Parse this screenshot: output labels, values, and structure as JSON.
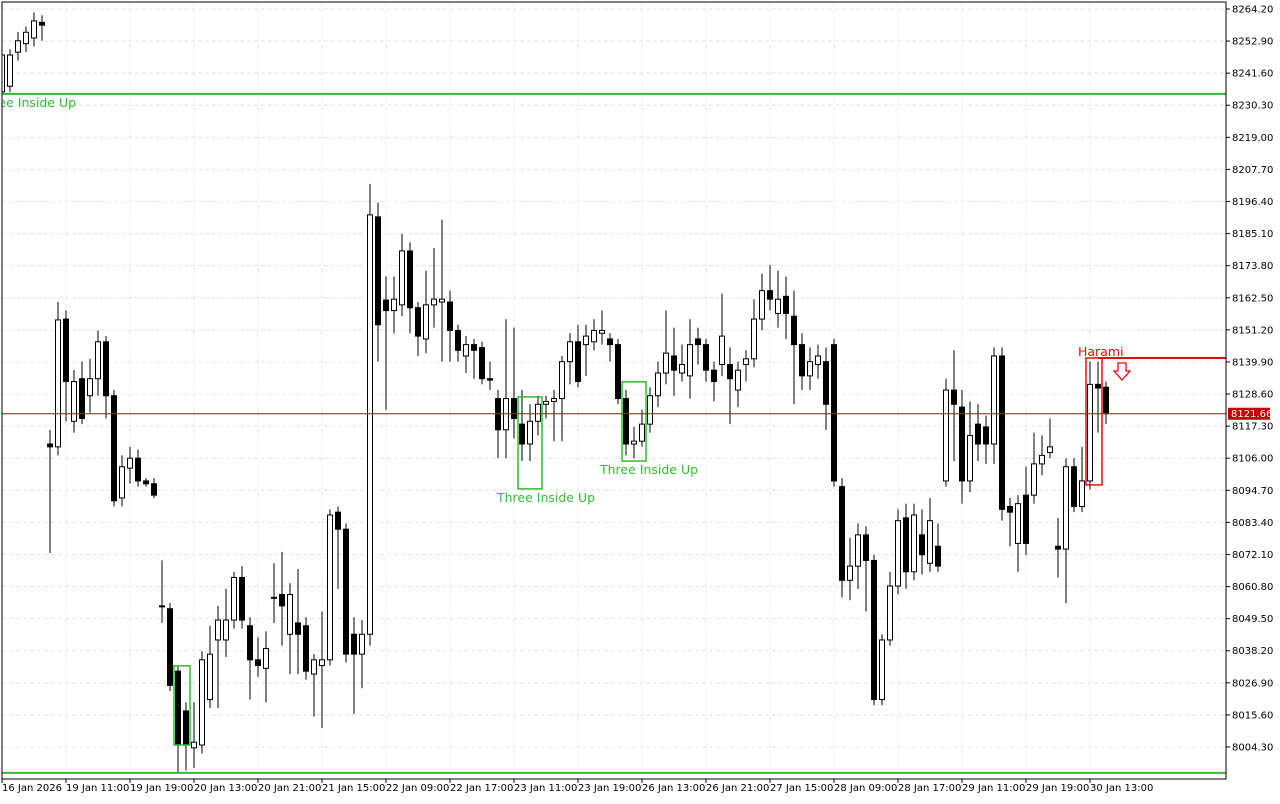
{
  "chart_data": {
    "type": "candlestick",
    "categories": [
      "16 Jan 2026",
      null,
      null,
      null,
      null,
      null,
      null,
      null,
      "19 Jan 11:00",
      null,
      null,
      null,
      null,
      null,
      null,
      null,
      "19 Jan 19:00",
      null,
      null,
      null,
      null,
      null,
      null,
      null,
      "20 Jan 13:00",
      null,
      null,
      null,
      null,
      null,
      null,
      null,
      "20 Jan 21:00",
      null,
      null,
      null,
      null,
      null,
      null,
      null,
      "21 Jan 15:00",
      null,
      null,
      null,
      null,
      null,
      null,
      null,
      "22 Jan 09:00",
      null,
      null,
      null,
      null,
      null,
      null,
      null,
      "22 Jan 17:00",
      null,
      null,
      null,
      null,
      null,
      null,
      null,
      "23 Jan 11:00",
      null,
      null,
      null,
      null,
      null,
      null,
      null,
      "23 Jan 19:00",
      null,
      null,
      null,
      null,
      null,
      null,
      null,
      "26 Jan 13:00",
      null,
      null,
      null,
      null,
      null,
      null,
      null,
      "26 Jan 21:00",
      null,
      null,
      null,
      null,
      null,
      null,
      null,
      "27 Jan 15:00",
      null,
      null,
      null,
      null,
      null,
      null,
      null,
      "28 Jan 09:00",
      null,
      null,
      null,
      null,
      null,
      null,
      null,
      "28 Jan 17:00",
      null,
      null,
      null,
      null,
      null,
      null,
      null,
      "29 Jan 11:00",
      null,
      null,
      null,
      null,
      null,
      null,
      null,
      "29 Jan 19:00",
      null,
      null,
      null,
      null,
      null,
      null,
      null,
      "30 Jan 13:00",
      null,
      null
    ],
    "open": [
      8235,
      8237,
      8249,
      8252,
      8254,
      8259.5,
      8111,
      8110,
      8155,
      8119,
      8134,
      8128,
      8134,
      8147,
      8128,
      8092,
      8102.5,
      8106,
      8098,
      8097,
      8054,
      8053,
      8031,
      8017,
      8004,
      8005,
      8021,
      8042,
      8042,
      8049,
      8064,
      8047,
      8035,
      8032,
      8057,
      8058,
      8044,
      8048,
      8047,
      8030,
      8033,
      8035,
      8087,
      8081,
      8044,
      8037,
      8044,
      8191,
      8161.7,
      8158,
      8160,
      8179,
      8159,
      8148,
      8160,
      8161,
      8161,
      8151,
      8142,
      8146,
      8145,
      8134,
      8127,
      8116,
      8127,
      8118,
      8111,
      8119,
      8125,
      8126,
      8127,
      8140,
      8147,
      8146,
      8147,
      8150,
      8148,
      8146,
      8127,
      8111,
      8112,
      8118,
      8128,
      8136,
      8142,
      8136,
      8135,
      8148,
      8146,
      8137,
      8139,
      8139,
      8130,
      8139,
      8141,
      8155,
      8165,
      8157,
      8163,
      8156,
      8146,
      8135,
      8139,
      8140,
      8146,
      8096,
      8063,
      8068,
      8079,
      8070,
      8021,
      8042,
      8061,
      8085,
      8066,
      8079,
      8069,
      8075,
      8098,
      8130,
      8124,
      8098,
      8118,
      8117,
      8111,
      8142,
      8089,
      8076,
      8093,
      8093,
      8104,
      8108,
      8075,
      8074,
      8103,
      8089,
      8098,
      8132,
      8131
    ],
    "high": [
      8252,
      8250,
      8256,
      8258,
      8263,
      8262,
      8116,
      8161,
      8158,
      8137,
      8140,
      8141,
      8151,
      8149,
      8130,
      8107,
      8110,
      8109,
      8099,
      8099,
      8070,
      8055,
      8033,
      8020,
      8020,
      8038,
      8047,
      8054,
      8060,
      8066,
      8068,
      8050,
      8043,
      8045,
      8069,
      8073,
      8062,
      8067,
      8050,
      8037,
      8052,
      8088,
      8089,
      8083,
      8050,
      8049,
      8202.6,
      8196,
      8170,
      8170,
      8185,
      8182,
      8161,
      8172,
      8180,
      8190,
      8165,
      8153,
      8149,
      8148,
      8147,
      8140,
      8130,
      8155,
      8152,
      8130,
      8125,
      8128,
      8128,
      8130,
      8142,
      8150,
      8153,
      8153,
      8155,
      8158,
      8150,
      8148,
      8130,
      8117,
      8123,
      8131,
      8140,
      8158,
      8152,
      8146,
      8155,
      8152,
      8148,
      8140,
      8164,
      8145,
      8140,
      8144,
      8162,
      8171,
      8174,
      8172,
      8170,
      8165,
      8150,
      8145,
      8146,
      8145,
      8148,
      8099,
      8078,
      8083,
      8082,
      8072,
      8044,
      8066,
      8088,
      8090,
      8090,
      8088,
      8092,
      8083,
      8134,
      8144,
      8130,
      8126,
      8125,
      8121,
      8145,
      8145,
      8092,
      8093,
      8103,
      8115,
      8114,
      8120,
      8085,
      8106,
      8106,
      8110,
      8140,
      8140,
      8133
    ],
    "low": [
      8232,
      8235,
      8246,
      8249,
      8251,
      8253,
      8072.6,
      8107,
      8119,
      8115,
      8118,
      8122,
      8128,
      8120,
      8089,
      8089,
      8097,
      8096,
      8096,
      8092,
      8048,
      8024,
      7995,
      7996,
      7997,
      8002,
      8018,
      8018,
      8036,
      8046,
      8046,
      8021,
      8029,
      8020,
      8048,
      8040,
      8030,
      8030,
      8028,
      8015,
      8011,
      8033,
      8060,
      8034,
      8016,
      8025,
      8040,
      8140,
      8123,
      8150,
      8156,
      8150,
      8142,
      8143,
      8152,
      8140,
      8140,
      8140,
      8136,
      8134,
      8132,
      8130,
      8106,
      8106,
      8113,
      8105,
      8105,
      8114,
      8120,
      8112,
      8112,
      8132,
      8131,
      8135,
      8144,
      8146,
      8140,
      8125,
      8107,
      8106,
      8110,
      8115,
      8124,
      8132,
      8128,
      8133,
      8127,
      8139,
      8133,
      8126,
      8135,
      8118,
      8124,
      8133,
      8138,
      8151,
      8158,
      8152,
      8148,
      8125,
      8130,
      8130,
      8134,
      8116,
      8096,
      8057,
      8056,
      8060,
      8052,
      8019,
      8019,
      8040,
      8058,
      8060,
      8063,
      8065,
      8066,
      8066,
      8096,
      8105,
      8090,
      8094,
      8105,
      8104,
      8104,
      8084,
      8075,
      8066,
      8072,
      8090,
      8100,
      8106,
      8064,
      8055,
      8087,
      8087,
      8095,
      8115,
      8118
    ],
    "close": [
      8248,
      8248,
      8253,
      8256,
      8260,
      8258.5,
      8110,
      8154.7,
      8133,
      8133,
      8120,
      8134,
      8147,
      8128,
      8091,
      8103,
      8106,
      8098,
      8097,
      8093,
      8054,
      8026,
      8005,
      8005,
      8006,
      8035,
      8037,
      8049,
      8049,
      8064,
      8049,
      8035,
      8033,
      8039,
      8057,
      8054,
      8058,
      8044,
      8031,
      8035,
      8035,
      8086,
      8081,
      8037,
      8037,
      8044,
      8191.7,
      8153,
      8158,
      8162,
      8179,
      8159,
      8149,
      8160,
      8162,
      8162,
      8151,
      8144,
      8146,
      8144,
      8134,
      8133.5,
      8116,
      8127,
      8120,
      8111,
      8119,
      8125,
      8126,
      8127,
      8140,
      8147,
      8133,
      8149,
      8151,
      8151,
      8146,
      8127,
      8111,
      8112,
      8118,
      8128,
      8136,
      8143,
      8137,
      8139,
      8146,
      8146,
      8137,
      8133,
      8149,
      8134,
      8137,
      8141,
      8155,
      8165,
      8162,
      8162,
      8157,
      8146,
      8135,
      8140,
      8142,
      8125,
      8098,
      8063,
      8068,
      8079,
      8070,
      8021,
      8042,
      8061,
      8084,
      8066,
      8086,
      8072,
      8084,
      8068,
      8130,
      8125,
      8098,
      8114,
      8111,
      8111,
      8142,
      8088,
      8087,
      8090,
      8076,
      8104,
      8107,
      8110,
      8074,
      8103,
      8089,
      8098,
      8132,
      8130.7,
      8121.66
    ],
    "ylim": [
      7993.03,
      8266.66
    ],
    "yticks": [
      {
        "value": 8264.2,
        "label": "8264.20"
      },
      {
        "value": 8252.9,
        "label": "8252.90"
      },
      {
        "value": 8241.6,
        "label": "8241.60"
      },
      {
        "value": 8230.3,
        "label": "8230.30"
      },
      {
        "value": 8219,
        "label": "8219.00"
      },
      {
        "value": 8207.7,
        "label": "8207.70"
      },
      {
        "value": 8196.4,
        "label": "8196.40"
      },
      {
        "value": 8185.1,
        "label": "8185.10"
      },
      {
        "value": 8173.8,
        "label": "8173.80"
      },
      {
        "value": 8162.5,
        "label": "8162.50"
      },
      {
        "value": 8151.2,
        "label": "8151.20"
      },
      {
        "value": 8139.9,
        "label": "8139.90"
      },
      {
        "value": 8128.6,
        "label": "8128.60"
      },
      {
        "value": 8117.3,
        "label": "8117.30"
      },
      {
        "value": 8106,
        "label": "8106.00"
      },
      {
        "value": 8094.7,
        "label": "8094.70"
      },
      {
        "value": 8083.4,
        "label": "8083.40"
      },
      {
        "value": 8072.1,
        "label": "8072.10"
      },
      {
        "value": 8060.8,
        "label": "8060.80"
      },
      {
        "value": 8049.5,
        "label": "8049.50"
      },
      {
        "value": 8038.2,
        "label": "8038.20"
      },
      {
        "value": 8026.9,
        "label": "8026.90"
      },
      {
        "value": 8015.6,
        "label": "8015.60"
      },
      {
        "value": 8004.3,
        "label": "8004.30"
      }
    ],
    "grid": true,
    "last_price": 8121.66,
    "levels": [
      {
        "value": 8234.3,
        "color": "#33bb33"
      },
      {
        "value": 7995.2,
        "color": "#33bb33"
      },
      {
        "value": 8141.3,
        "color": "#e01010",
        "from": 137
      }
    ],
    "boxes": [
      {
        "from": 22,
        "to": 23,
        "high": 8032.9,
        "low": 8005.0,
        "color": "#33bb33"
      },
      {
        "from": 65,
        "to": 67,
        "high": 8127.6,
        "low": 8095.2,
        "color": "#33bb33"
      },
      {
        "from": 78,
        "to": 80,
        "high": 8132.9,
        "low": 8105.0,
        "color": "#33bb33"
      },
      {
        "from": 136,
        "to": 137,
        "high": 8141.3,
        "low": 8096.6,
        "color": "#e01010"
      }
    ],
    "annotations": [
      "Three Inside Up",
      "Three Inside Up",
      "Three Inside Up",
      "Harami"
    ]
  }
}
